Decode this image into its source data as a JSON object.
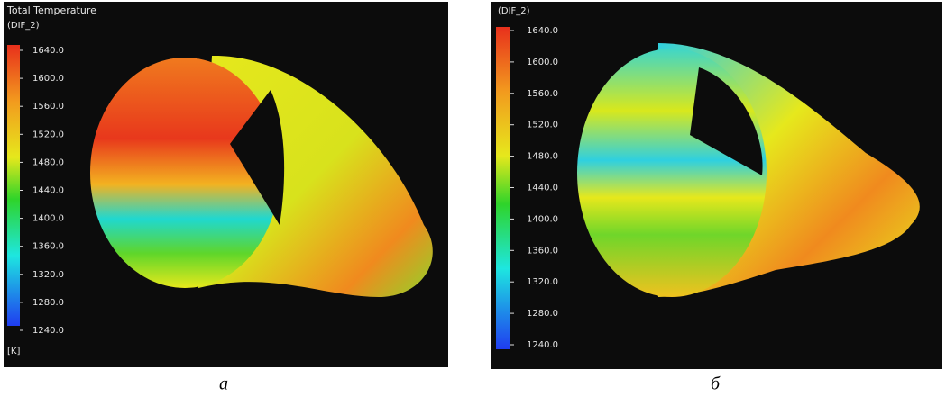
{
  "panels": [
    {
      "title": "Total  Temperature",
      "subtitle": "(DIF_2)",
      "ticks": [
        "1640.0",
        "1600.0",
        "1560.0",
        "1520.0",
        "1480.0",
        "1440.0",
        "1400.0",
        "1360.0",
        "1320.0",
        "1280.0",
        "1240.0"
      ],
      "unit": "[K]",
      "caption": "а"
    },
    {
      "subtitle": "(DIF_2)",
      "ticks": [
        "1640.0",
        "1600.0",
        "1560.0",
        "1520.0",
        "1480.0",
        "1440.0",
        "1400.0",
        "1360.0",
        "1320.0",
        "1280.0",
        "1240.0"
      ],
      "caption": "б"
    }
  ]
}
